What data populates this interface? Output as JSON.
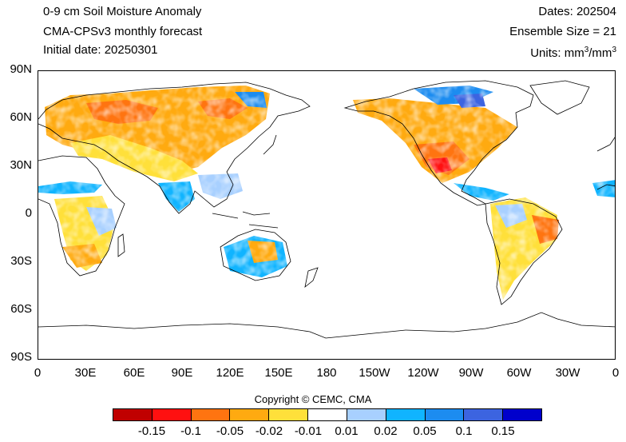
{
  "header": {
    "title_line1": "0-9 cm Soil Moisture Anomaly",
    "title_line2": "CMA-CPSv3 monthly forecast",
    "title_line3": "Initial date: 20250301",
    "dates": "Dates: 202504",
    "ensemble": "Ensemble Size = 21",
    "units_prefix": "Units: mm",
    "units_mid": "/mm",
    "units_exp": "3"
  },
  "axes": {
    "lat_labels": [
      "90N",
      "60N",
      "30N",
      "0",
      "30S",
      "60S",
      "90S"
    ],
    "lon_labels": [
      "0",
      "30E",
      "60E",
      "90E",
      "120E",
      "150E",
      "180",
      "150W",
      "120W",
      "90W",
      "60W",
      "30W",
      "0"
    ]
  },
  "map": {
    "projection": "cylindrical-equidistant",
    "lon_range": [
      0,
      360
    ],
    "lat_range": [
      -90,
      90
    ],
    "land_fill": "#ffffff",
    "coast_color": "#000000"
  },
  "copyright": "Copyright © CEMC, CMA",
  "colorbar": {
    "colors": [
      "#c00000",
      "#ff1010",
      "#ff7410",
      "#ffaa10",
      "#ffe03a",
      "#ffffff",
      "#a8d0ff",
      "#10b4ff",
      "#1c8cf0",
      "#3c64e0",
      "#0000cc"
    ],
    "labels": [
      "-0.15",
      "-0.1",
      "-0.05",
      "-0.02",
      "-0.01",
      "0.01",
      "0.02",
      "0.05",
      "0.1",
      "0.15"
    ]
  }
}
